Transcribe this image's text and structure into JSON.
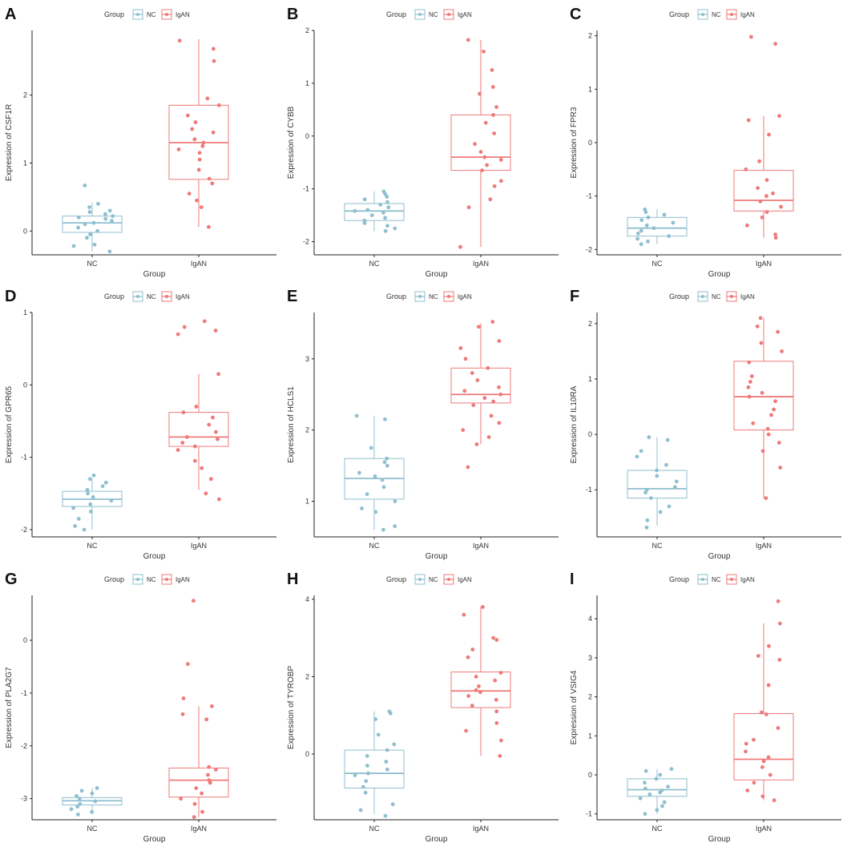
{
  "legend": {
    "title": "Group",
    "nc_label": "NC",
    "igan_label": "IgAN"
  },
  "colors": {
    "nc": "#8fbfcf",
    "igan": "#ef7a7a",
    "axis": "#222222",
    "text": "#333333"
  },
  "chart_data": [
    {
      "type": "box",
      "panel": "A",
      "title": "",
      "xlabel": "Group",
      "ylabel": "Expression of CSF1R",
      "categories": [
        "NC",
        "IgAN"
      ],
      "ylim": [
        -0.35,
        2.95
      ],
      "yticks": [
        0,
        1,
        2
      ],
      "boxes": [
        {
          "group": "NC",
          "q1": -0.02,
          "median": 0.12,
          "q3": 0.22,
          "whisker_low": -0.3,
          "whisker_high": 0.42,
          "points": [
            -0.3,
            -0.22,
            -0.2,
            -0.1,
            -0.05,
            0.0,
            0.05,
            0.1,
            0.12,
            0.15,
            0.18,
            0.2,
            0.22,
            0.25,
            0.28,
            0.3,
            0.35,
            0.4,
            0.67
          ]
        },
        {
          "group": "IgAN",
          "q1": 0.76,
          "median": 1.3,
          "q3": 1.85,
          "whisker_low": 0.06,
          "whisker_high": 2.82,
          "points": [
            0.06,
            0.35,
            0.45,
            0.55,
            0.7,
            0.77,
            0.9,
            1.05,
            1.15,
            1.2,
            1.25,
            1.3,
            1.35,
            1.45,
            1.5,
            1.6,
            1.7,
            1.85,
            1.95,
            2.5,
            2.68,
            2.8
          ]
        }
      ]
    },
    {
      "type": "box",
      "panel": "B",
      "title": "",
      "xlabel": "Group",
      "ylabel": "Expression of CYBB",
      "categories": [
        "NC",
        "IgAN"
      ],
      "ylim": [
        -2.25,
        2.0
      ],
      "yticks": [
        -2,
        -1,
        0,
        1,
        2
      ],
      "boxes": [
        {
          "group": "NC",
          "q1": -1.6,
          "median": -1.42,
          "q3": -1.28,
          "whisker_low": -1.8,
          "whisker_high": -1.05,
          "points": [
            -1.8,
            -1.75,
            -1.7,
            -1.65,
            -1.6,
            -1.55,
            -1.5,
            -1.45,
            -1.42,
            -1.4,
            -1.35,
            -1.3,
            -1.25,
            -1.2,
            -1.15,
            -1.1,
            -1.05
          ]
        },
        {
          "group": "IgAN",
          "q1": -0.65,
          "median": -0.4,
          "q3": 0.4,
          "whisker_low": -2.1,
          "whisker_high": 1.82,
          "points": [
            -2.1,
            -1.35,
            -1.2,
            -0.95,
            -0.85,
            -0.65,
            -0.55,
            -0.45,
            -0.4,
            -0.3,
            -0.15,
            0.05,
            0.25,
            0.4,
            0.55,
            0.8,
            0.93,
            1.25,
            1.6,
            1.82
          ]
        }
      ]
    },
    {
      "type": "box",
      "panel": "C",
      "title": "",
      "xlabel": "Group",
      "ylabel": "Expression of FPR3",
      "categories": [
        "NC",
        "IgAN"
      ],
      "ylim": [
        -2.1,
        2.1
      ],
      "yticks": [
        -2,
        -1,
        0,
        1,
        2
      ],
      "boxes": [
        {
          "group": "NC",
          "q1": -1.75,
          "median": -1.6,
          "q3": -1.4,
          "whisker_low": -1.9,
          "whisker_high": -1.25,
          "points": [
            -1.9,
            -1.85,
            -1.8,
            -1.75,
            -1.7,
            -1.65,
            -1.6,
            -1.55,
            -1.5,
            -1.45,
            -1.4,
            -1.35,
            -1.3,
            -1.25
          ]
        },
        {
          "group": "IgAN",
          "q1": -1.28,
          "median": -1.08,
          "q3": -0.52,
          "whisker_low": -1.78,
          "whisker_high": 0.5,
          "points": [
            -1.78,
            -1.72,
            -1.55,
            -1.4,
            -1.3,
            -1.2,
            -1.1,
            -1.0,
            -0.95,
            -0.85,
            -0.7,
            -0.5,
            -0.35,
            0.15,
            0.42,
            0.5,
            1.85,
            1.98
          ]
        }
      ]
    },
    {
      "type": "box",
      "panel": "D",
      "title": "",
      "xlabel": "Group",
      "ylabel": "Expression of GPR65",
      "categories": [
        "NC",
        "IgAN"
      ],
      "ylim": [
        -2.1,
        1.0
      ],
      "yticks": [
        -2,
        -1,
        0,
        1
      ],
      "boxes": [
        {
          "group": "NC",
          "q1": -1.68,
          "median": -1.58,
          "q3": -1.47,
          "whisker_low": -2.0,
          "whisker_high": -1.3,
          "points": [
            -2.0,
            -1.95,
            -1.85,
            -1.75,
            -1.7,
            -1.65,
            -1.6,
            -1.55,
            -1.5,
            -1.45,
            -1.4,
            -1.35,
            -1.3,
            -1.25
          ]
        },
        {
          "group": "IgAN",
          "q1": -0.85,
          "median": -0.72,
          "q3": -0.38,
          "whisker_low": -1.45,
          "whisker_high": 0.15,
          "points": [
            -1.58,
            -1.5,
            -1.3,
            -1.15,
            -1.05,
            -0.9,
            -0.85,
            -0.8,
            -0.75,
            -0.72,
            -0.65,
            -0.55,
            -0.45,
            -0.38,
            -0.3,
            0.15,
            0.7,
            0.75,
            0.8,
            0.88
          ]
        }
      ]
    },
    {
      "type": "box",
      "panel": "E",
      "title": "",
      "xlabel": "Group",
      "ylabel": "Expression of HCLS1",
      "categories": [
        "NC",
        "IgAN"
      ],
      "ylim": [
        0.5,
        3.65
      ],
      "yticks": [
        1,
        2,
        3
      ],
      "boxes": [
        {
          "group": "NC",
          "q1": 1.03,
          "median": 1.32,
          "q3": 1.6,
          "whisker_low": 0.6,
          "whisker_high": 2.2,
          "points": [
            0.6,
            0.65,
            0.85,
            0.9,
            1.0,
            1.1,
            1.2,
            1.3,
            1.35,
            1.4,
            1.5,
            1.55,
            1.6,
            1.75,
            2.15,
            2.2
          ]
        },
        {
          "group": "IgAN",
          "q1": 2.38,
          "median": 2.5,
          "q3": 2.87,
          "whisker_low": 1.8,
          "whisker_high": 3.5,
          "points": [
            1.48,
            1.8,
            1.9,
            2.0,
            2.1,
            2.2,
            2.35,
            2.4,
            2.45,
            2.5,
            2.55,
            2.6,
            2.7,
            2.8,
            2.87,
            3.0,
            3.15,
            3.25,
            3.45,
            3.52
          ]
        }
      ]
    },
    {
      "type": "box",
      "panel": "F",
      "title": "",
      "xlabel": "Group",
      "ylabel": "Expression of IL10RA",
      "categories": [
        "NC",
        "IgAN"
      ],
      "ylim": [
        -1.85,
        2.2
      ],
      "yticks": [
        -1,
        0,
        1,
        2
      ],
      "boxes": [
        {
          "group": "NC",
          "q1": -1.15,
          "median": -0.98,
          "q3": -0.65,
          "whisker_low": -1.65,
          "whisker_high": -0.05,
          "points": [
            -1.68,
            -1.55,
            -1.4,
            -1.3,
            -1.15,
            -1.05,
            -1.0,
            -0.95,
            -0.85,
            -0.75,
            -0.65,
            -0.55,
            -0.4,
            -0.3,
            -0.1,
            -0.05
          ]
        },
        {
          "group": "IgAN",
          "q1": 0.08,
          "median": 0.68,
          "q3": 1.32,
          "whisker_low": -1.15,
          "whisker_high": 2.1,
          "points": [
            -1.15,
            -0.6,
            -0.3,
            -0.15,
            0.0,
            0.1,
            0.2,
            0.35,
            0.45,
            0.6,
            0.68,
            0.75,
            0.85,
            0.95,
            1.05,
            1.3,
            1.5,
            1.65,
            1.85,
            1.95,
            2.1
          ]
        }
      ]
    },
    {
      "type": "box",
      "panel": "G",
      "title": "",
      "xlabel": "Group",
      "ylabel": "Expression of PLA2G7",
      "categories": [
        "NC",
        "IgAN"
      ],
      "ylim": [
        -3.4,
        0.85
      ],
      "yticks": [
        -3,
        -2,
        -1,
        0
      ],
      "boxes": [
        {
          "group": "NC",
          "q1": -3.12,
          "median": -3.04,
          "q3": -2.98,
          "whisker_low": -3.3,
          "whisker_high": -2.8,
          "points": [
            -3.3,
            -3.25,
            -3.2,
            -3.15,
            -3.1,
            -3.05,
            -3.0,
            -2.95,
            -2.9,
            -2.85,
            -2.8
          ]
        },
        {
          "group": "IgAN",
          "q1": -2.97,
          "median": -2.65,
          "q3": -2.42,
          "whisker_low": -3.35,
          "whisker_high": -1.25,
          "points": [
            -3.35,
            -3.25,
            -3.1,
            -3.0,
            -2.9,
            -2.8,
            -2.7,
            -2.65,
            -2.55,
            -2.45,
            -2.4,
            -1.5,
            -1.4,
            -1.25,
            -1.1,
            -0.45,
            0.75
          ]
        }
      ]
    },
    {
      "type": "box",
      "panel": "H",
      "title": "",
      "xlabel": "Group",
      "ylabel": "Expression of TYROBP",
      "categories": [
        "NC",
        "IgAN"
      ],
      "ylim": [
        -1.7,
        4.1
      ],
      "yticks": [
        0,
        2,
        4
      ],
      "boxes": [
        {
          "group": "NC",
          "q1": -0.88,
          "median": -0.5,
          "q3": 0.1,
          "whisker_low": -1.55,
          "whisker_high": 1.1,
          "points": [
            -1.6,
            -1.45,
            -1.3,
            -1.0,
            -0.85,
            -0.7,
            -0.55,
            -0.5,
            -0.4,
            -0.3,
            -0.2,
            -0.05,
            0.1,
            0.25,
            0.5,
            0.9,
            1.05,
            1.1
          ]
        },
        {
          "group": "IgAN",
          "q1": 1.2,
          "median": 1.63,
          "q3": 2.12,
          "whisker_low": -0.05,
          "whisker_high": 3.8,
          "points": [
            -0.05,
            0.35,
            0.6,
            0.8,
            1.1,
            1.25,
            1.4,
            1.5,
            1.6,
            1.65,
            1.75,
            1.9,
            2.0,
            2.1,
            2.5,
            2.7,
            2.95,
            3.0,
            3.6,
            3.8
          ]
        }
      ]
    },
    {
      "type": "box",
      "panel": "I",
      "title": "",
      "xlabel": "Group",
      "ylabel": "Expression of VSIG4",
      "categories": [
        "NC",
        "IgAN"
      ],
      "ylim": [
        -1.15,
        4.6
      ],
      "yticks": [
        -1,
        0,
        1,
        2,
        3,
        4
      ],
      "boxes": [
        {
          "group": "NC",
          "q1": -0.55,
          "median": -0.38,
          "q3": -0.1,
          "whisker_low": -1.0,
          "whisker_high": 0.15,
          "points": [
            -1.0,
            -0.9,
            -0.8,
            -0.7,
            -0.6,
            -0.5,
            -0.45,
            -0.4,
            -0.35,
            -0.3,
            -0.2,
            -0.1,
            0.0,
            0.1,
            0.15
          ]
        },
        {
          "group": "IgAN",
          "q1": -0.13,
          "median": 0.4,
          "q3": 1.57,
          "whisker_low": -0.65,
          "whisker_high": 3.88,
          "points": [
            -0.65,
            -0.55,
            -0.4,
            -0.2,
            0.0,
            0.2,
            0.35,
            0.45,
            0.6,
            0.8,
            0.9,
            1.2,
            1.55,
            1.6,
            2.3,
            2.95,
            3.05,
            3.3,
            3.88,
            4.45
          ]
        }
      ]
    }
  ]
}
